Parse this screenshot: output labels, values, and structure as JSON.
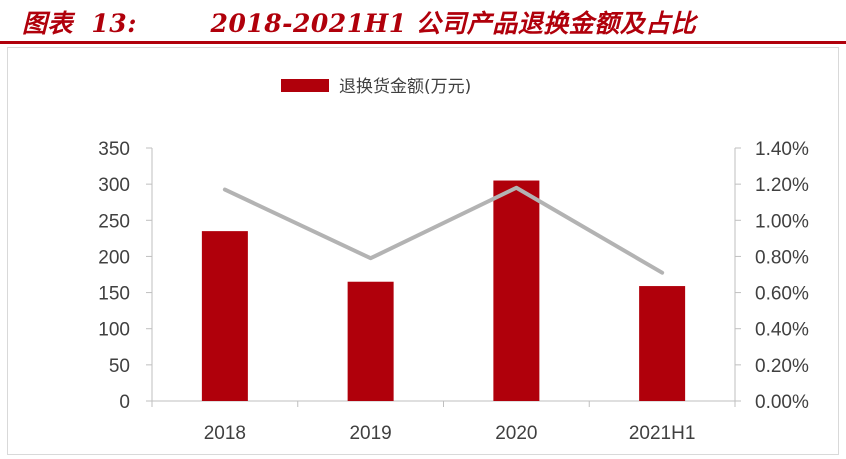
{
  "figure": {
    "title": "图表  13:        2018-2021H1 公司产品退换金额及占比"
  },
  "chart_data": {
    "type": "bar",
    "categories": [
      "2018",
      "2019",
      "2020",
      "2021H1"
    ],
    "series": [
      {
        "name": "退换货金额(万元)",
        "kind": "bar",
        "axis": "left",
        "color": "#b0000b",
        "values": [
          235,
          165,
          305,
          159
        ]
      },
      {
        "kind": "line",
        "axis": "right",
        "color": "#b3b3b3",
        "values": [
          1.17,
          0.79,
          1.18,
          0.71
        ]
      }
    ],
    "y_left": {
      "ylim": [
        0,
        350
      ],
      "ticks": [
        "0",
        "50",
        "100",
        "150",
        "200",
        "250",
        "300",
        "350"
      ]
    },
    "y_right": {
      "ylim": [
        0,
        1.4
      ],
      "ticks": [
        "0.00%",
        "0.20%",
        "0.40%",
        "0.60%",
        "0.80%",
        "1.00%",
        "1.20%",
        "1.40%"
      ]
    },
    "legend": {
      "position": "top",
      "entries": [
        "退换货金额(万元)"
      ]
    },
    "grid": false
  }
}
